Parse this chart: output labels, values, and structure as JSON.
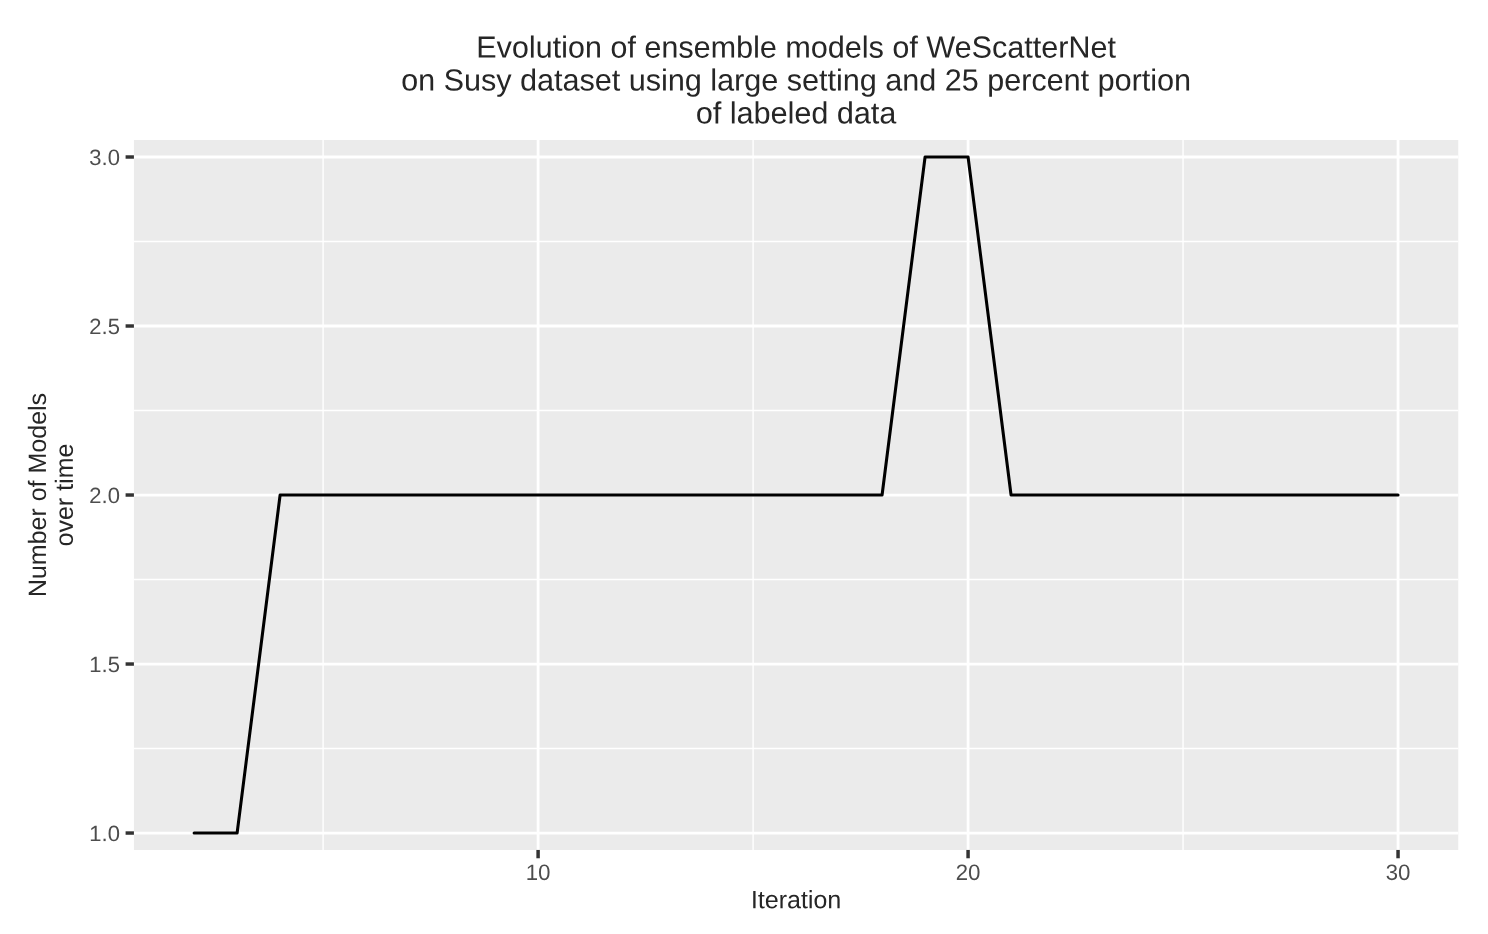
{
  "chart_data": {
    "type": "line",
    "title": "Evolution of ensemble models of WeScatterNet\non Susy dataset using large setting and 25 percent portion\nof labeled data",
    "xlabel": "Iteration",
    "ylabel": "Number of Models\nover time",
    "x": [
      2,
      3,
      4,
      5,
      6,
      7,
      8,
      9,
      10,
      11,
      12,
      13,
      14,
      15,
      16,
      17,
      18,
      19,
      20,
      21,
      22,
      23,
      24,
      25,
      26,
      27,
      28,
      29,
      30
    ],
    "series": [
      {
        "color": "#000000",
        "values": [
          1,
          1,
          2,
          2,
          2,
          2,
          2,
          2,
          2,
          2,
          2,
          2,
          2,
          2,
          2,
          2,
          2,
          3,
          3,
          2,
          2,
          2,
          2,
          2,
          2,
          2,
          2,
          2,
          2
        ]
      }
    ],
    "xlim": [
      0.6,
      31.4
    ],
    "ylim": [
      0.95,
      3.05
    ],
    "xticks": [
      10,
      20,
      30
    ],
    "yticks": [
      {
        "value": 1,
        "label": "1.0"
      },
      {
        "value": 1.5,
        "label": "1.5"
      },
      {
        "value": 2,
        "label": "2.0"
      },
      {
        "value": 2.5,
        "label": "2.5"
      },
      {
        "value": 3,
        "label": "3.0"
      }
    ],
    "grid": true,
    "marker": "none",
    "line_style": "solid",
    "legend": false
  }
}
